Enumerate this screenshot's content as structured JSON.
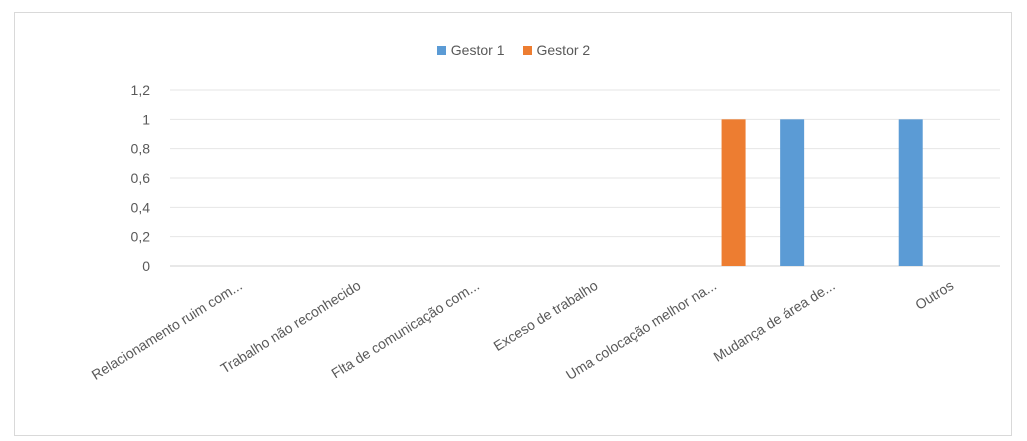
{
  "chart_data": {
    "type": "bar",
    "categories": [
      "Relacionamento ruim com...",
      "Trabalho não reconhecido",
      "Flta de comunicação com...",
      "Exceso de trabalho",
      "Uma colocação melhor na...",
      "Mudança de área de...",
      "Outros"
    ],
    "series": [
      {
        "name": "Gestor 1",
        "color": "#5b9bd5",
        "values": [
          0,
          0,
          0,
          0,
          0,
          1,
          1
        ]
      },
      {
        "name": "Gestor 2",
        "color": "#ed7d31",
        "values": [
          0,
          0,
          0,
          0,
          1,
          0,
          0
        ]
      }
    ],
    "y_ticks": [
      "0",
      "0,2",
      "0,4",
      "0,6",
      "0,8",
      "1",
      "1,2"
    ],
    "ylim": [
      0,
      1.2
    ],
    "grid": true,
    "legend_position": "top"
  }
}
